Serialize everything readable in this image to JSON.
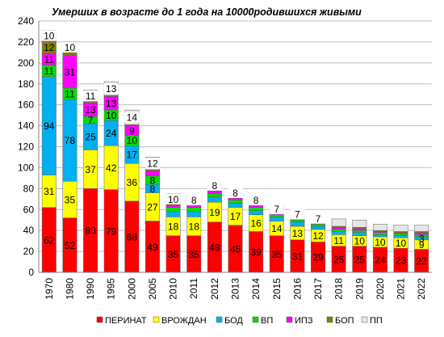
{
  "chart_data": {
    "type": "bar",
    "stacked": true,
    "title": "Умерших в возрасте до 1 года на 10000родившихся живыми",
    "xlabel": "",
    "ylabel": "",
    "ylim": [
      0,
      240
    ],
    "yticks": [
      0,
      20,
      40,
      60,
      80,
      100,
      120,
      140,
      160,
      180,
      200,
      220,
      240
    ],
    "grid": true,
    "legend_position": "bottom",
    "categories": [
      "1970",
      "1980",
      "1990",
      "1995",
      "2000",
      "2005",
      "2010",
      "2011",
      "2012",
      "2013",
      "2014",
      "2015",
      "2016",
      "2017",
      "2018",
      "2019",
      "2020",
      "2021",
      "2022"
    ],
    "series": [
      {
        "name": "ПЕРИНАТ",
        "color": "#ff0000",
        "values": [
          62,
          52,
          80,
          79,
          68,
          49,
          35,
          35,
          48,
          45,
          39,
          35,
          31,
          29,
          25,
          25,
          24,
          23,
          22
        ]
      },
      {
        "name": "ВРОЖДАН",
        "color": "#ffff00",
        "values": [
          31,
          35,
          37,
          42,
          36,
          27,
          18,
          18,
          19,
          17,
          16,
          14,
          13,
          12,
          11,
          10,
          10,
          10,
          9
        ]
      },
      {
        "name": "БОД",
        "color": "#00b0f0",
        "values": [
          94,
          78,
          25,
          24,
          17,
          8,
          5,
          5,
          5,
          4,
          4,
          4,
          4,
          3,
          3,
          3,
          2,
          2,
          3
        ]
      },
      {
        "name": "ВП",
        "color": "#00dd00",
        "values": [
          11,
          11,
          7,
          10,
          10,
          8,
          4,
          4,
          3,
          3,
          3,
          2,
          2,
          2,
          2,
          2,
          2,
          2,
          2
        ]
      },
      {
        "name": "ИПЗ",
        "color": "#ff00ff",
        "values": [
          11,
          31,
          13,
          13,
          9,
          5,
          2,
          2,
          3,
          2,
          2,
          1,
          1,
          1,
          2,
          2,
          1,
          1,
          2
        ]
      },
      {
        "name": "БОП",
        "color": "#808000",
        "values": [
          12,
          3,
          1,
          1,
          1,
          1,
          1,
          1,
          1,
          1,
          1,
          1,
          1,
          1,
          1,
          1,
          1,
          1,
          1
        ]
      },
      {
        "name": "ПП",
        "color": "#e6e6e6",
        "values": [
          10,
          10,
          11,
          13,
          14,
          12,
          10,
          8,
          8,
          8,
          8,
          7,
          7,
          7,
          7,
          7,
          6,
          6,
          6
        ]
      }
    ],
    "data_labels": [
      [
        "62",
        "31",
        "94",
        "11",
        "11",
        "12",
        "10"
      ],
      [
        "52",
        "35",
        "78",
        "11",
        "31",
        "",
        "10"
      ],
      [
        "80",
        "37",
        "25",
        "7",
        "13",
        "",
        "11"
      ],
      [
        "79",
        "42",
        "24",
        "10",
        "13",
        "",
        "13"
      ],
      [
        "68",
        "36",
        "17",
        "10",
        "9",
        "",
        "14"
      ],
      [
        "49",
        "27",
        "8",
        "8",
        "",
        "",
        "12"
      ],
      [
        "35",
        "18",
        "",
        "",
        "",
        "",
        "10"
      ],
      [
        "35",
        "18",
        "",
        "",
        "",
        "",
        "8"
      ],
      [
        "48",
        "19",
        "",
        "",
        "",
        "",
        "8"
      ],
      [
        "45",
        "17",
        "",
        "",
        "",
        "",
        "8"
      ],
      [
        "39",
        "16",
        "",
        "",
        "",
        "",
        "8"
      ],
      [
        "35",
        "14",
        "",
        "",
        "",
        "",
        "7"
      ],
      [
        "31",
        "13",
        "",
        "",
        "",
        "",
        "7"
      ],
      [
        "29",
        "12",
        "",
        "",
        "",
        "",
        "7"
      ],
      [
        "25",
        "11",
        "",
        "",
        "",
        "",
        ""
      ],
      [
        "25",
        "10",
        "",
        "",
        "",
        "",
        ""
      ],
      [
        "24",
        "10",
        "",
        "",
        "",
        "",
        ""
      ],
      [
        "23",
        "10",
        "",
        "",
        "",
        "",
        ""
      ],
      [
        "22",
        "9",
        "3",
        "",
        "",
        "",
        ""
      ]
    ]
  }
}
